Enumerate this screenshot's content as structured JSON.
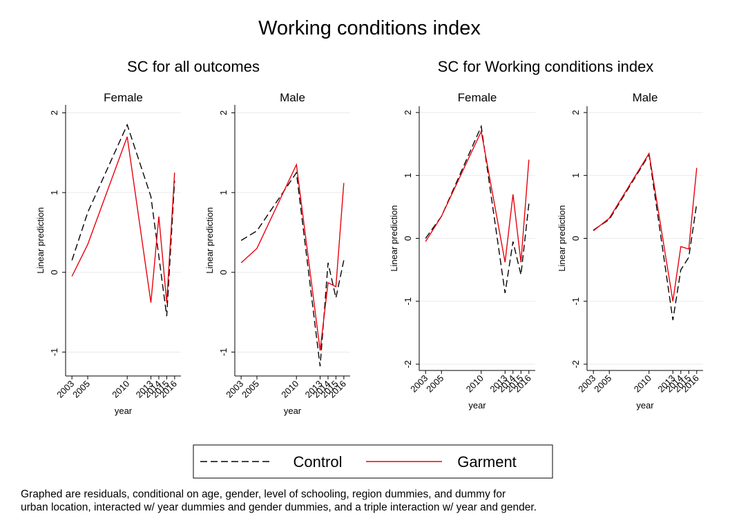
{
  "title": "Working conditions index",
  "subtitles": [
    "SC for all outcomes",
    "SC for Working conditions index"
  ],
  "note": [
    "Graphed are residuals, conditional on age, gender, level of schooling, region dummies, and dummy for",
    "urban location, interacted w/ year dummies and gender dummies, and a triple interaction w/ year and gender."
  ],
  "chart_data": [
    {
      "type": "line",
      "title": "Female",
      "xlabel": "year",
      "ylabel": "Linear prediction",
      "x": [
        2003,
        2005,
        2010,
        2013,
        2014,
        2015,
        2016
      ],
      "xticks": [
        2003,
        2005,
        2010,
        2013,
        2014,
        2015,
        2016
      ],
      "xlim": [
        2002.2,
        2016.8
      ],
      "ylim": [
        -1.3,
        2.1
      ],
      "yticks": [
        -1,
        0,
        1,
        2
      ],
      "grid": true,
      "series": [
        {
          "name": "Control",
          "color": "#000000",
          "line_style": "dashed",
          "values": [
            0.15,
            0.75,
            1.85,
            0.95,
            0.2,
            -0.55,
            1.15
          ]
        },
        {
          "name": "Garment",
          "color": "#e8000b",
          "line_style": "solid",
          "values": [
            -0.05,
            0.35,
            1.7,
            -0.38,
            0.7,
            -0.38,
            1.25
          ]
        }
      ]
    },
    {
      "type": "line",
      "title": "Male",
      "xlabel": "year",
      "ylabel": "Linear prediction",
      "x": [
        2003,
        2005,
        2010,
        2013,
        2014,
        2015,
        2016
      ],
      "xticks": [
        2003,
        2005,
        2010,
        2013,
        2014,
        2015,
        2016
      ],
      "xlim": [
        2002.2,
        2016.8
      ],
      "ylim": [
        -1.3,
        2.1
      ],
      "yticks": [
        -1,
        0,
        1,
        2
      ],
      "grid": true,
      "series": [
        {
          "name": "Control",
          "color": "#000000",
          "line_style": "dashed",
          "values": [
            0.4,
            0.52,
            1.25,
            -1.18,
            0.12,
            -0.32,
            0.15
          ]
        },
        {
          "name": "Garment",
          "color": "#e8000b",
          "line_style": "solid",
          "values": [
            0.12,
            0.3,
            1.35,
            -0.98,
            -0.13,
            -0.18,
            1.12
          ]
        }
      ]
    },
    {
      "type": "line",
      "title": "Female",
      "xlabel": "year",
      "ylabel": "Linear prediction",
      "x": [
        2003,
        2005,
        2010,
        2013,
        2014,
        2015,
        2016
      ],
      "xticks": [
        2003,
        2005,
        2010,
        2013,
        2014,
        2015,
        2016
      ],
      "xlim": [
        2002.2,
        2016.8
      ],
      "ylim": [
        -2.1,
        2.1
      ],
      "yticks": [
        -2,
        -1,
        0,
        1,
        2
      ],
      "grid": true,
      "series": [
        {
          "name": "Control",
          "color": "#000000",
          "line_style": "dashed",
          "values": [
            0.0,
            0.35,
            1.78,
            -0.87,
            -0.05,
            -0.58,
            0.55
          ]
        },
        {
          "name": "Garment",
          "color": "#e8000b",
          "line_style": "solid",
          "values": [
            -0.05,
            0.35,
            1.7,
            -0.38,
            0.7,
            -0.38,
            1.25
          ]
        }
      ]
    },
    {
      "type": "line",
      "title": "Male",
      "xlabel": "year",
      "ylabel": "Linear prediction",
      "x": [
        2003,
        2005,
        2010,
        2013,
        2014,
        2015,
        2016
      ],
      "xticks": [
        2003,
        2005,
        2010,
        2013,
        2014,
        2015,
        2016
      ],
      "xlim": [
        2002.2,
        2016.8
      ],
      "ylim": [
        -2.1,
        2.1
      ],
      "yticks": [
        -2,
        -1,
        0,
        1,
        2
      ],
      "grid": true,
      "series": [
        {
          "name": "Control",
          "color": "#000000",
          "line_style": "dashed",
          "values": [
            0.13,
            0.3,
            1.33,
            -1.3,
            -0.5,
            -0.3,
            0.55
          ]
        },
        {
          "name": "Garment",
          "color": "#e8000b",
          "line_style": "solid",
          "values": [
            0.12,
            0.32,
            1.35,
            -1.0,
            -0.13,
            -0.17,
            1.12
          ]
        }
      ]
    }
  ]
}
